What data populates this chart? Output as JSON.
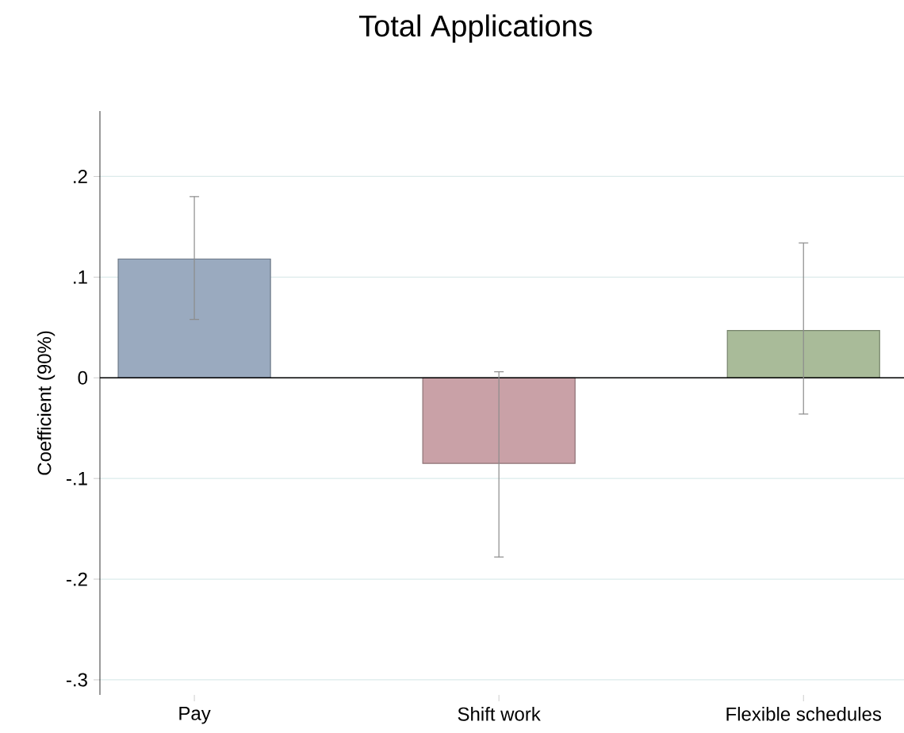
{
  "chart_data": {
    "type": "bar",
    "title": "Total Applications",
    "ylabel": "Coefficient (90%)",
    "categories": [
      "Pay",
      "Shift work",
      "Flexible schedules"
    ],
    "values": [
      0.118,
      -0.085,
      0.047
    ],
    "errors": [
      [
        0.058,
        0.18
      ],
      [
        -0.178,
        0.006
      ],
      [
        -0.036,
        0.134
      ]
    ],
    "colors": [
      "#9aaabf",
      "#c9a1a7",
      "#a9bb99"
    ],
    "ylim": [
      -0.315,
      0.265
    ],
    "yticks": [
      {
        "value": -0.3,
        "label": "-.3"
      },
      {
        "value": -0.2,
        "label": "-.2"
      },
      {
        "value": -0.1,
        "label": "-.1"
      },
      0,
      {
        "value": 0.1,
        "label": ".1"
      },
      {
        "value": 0.2,
        "label": ".2"
      }
    ],
    "ref_lines": [
      {
        "axis": "y",
        "value": 0,
        "color": "#000000"
      }
    ],
    "grid": "y"
  }
}
